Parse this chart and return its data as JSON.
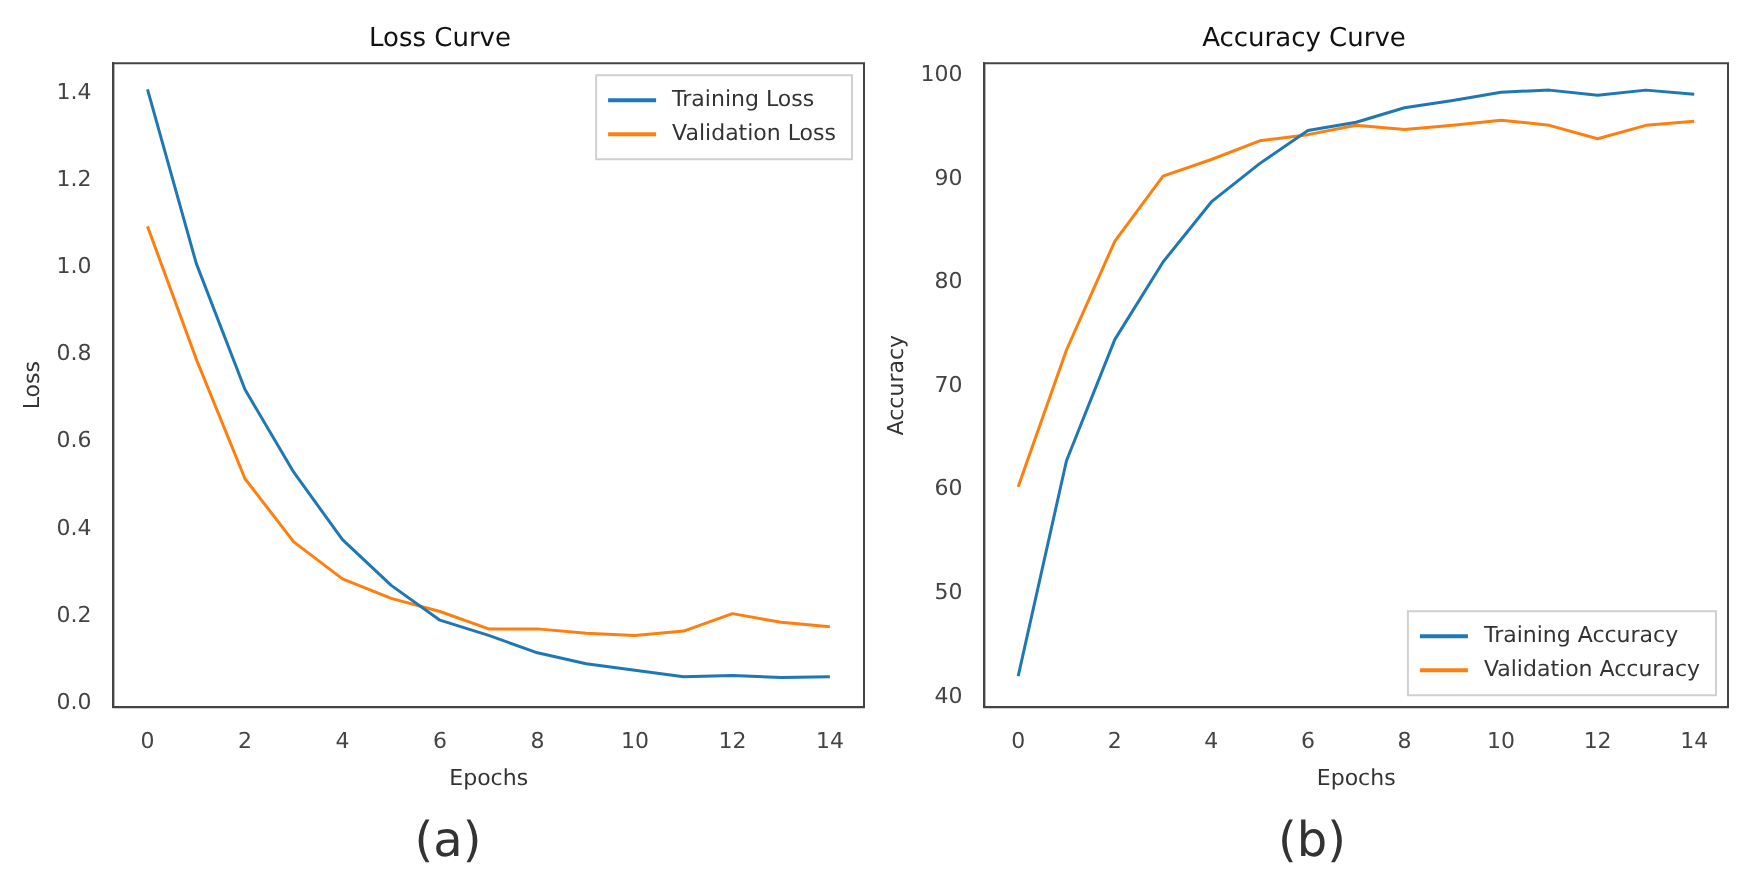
{
  "chart_data": [
    {
      "type": "line",
      "title": "Loss Curve",
      "xlabel": "Epochs",
      "ylabel": "Loss",
      "annotations": [
        "(a)"
      ],
      "x": [
        0,
        1,
        2,
        3,
        4,
        5,
        6,
        7,
        8,
        9,
        10,
        11,
        12,
        13,
        14
      ],
      "xlim": [
        -0.7,
        14.7
      ],
      "xticks": [
        0,
        2,
        4,
        6,
        8,
        10,
        12,
        14
      ],
      "ylim": [
        -0.01,
        1.47
      ],
      "yticks": [
        {
          "value": 0,
          "label": "0.0"
        },
        0.2,
        0.4,
        0.6,
        0.8,
        {
          "value": 1,
          "label": "1.0"
        },
        1.2,
        1.4
      ],
      "grid": false,
      "legend": "top right",
      "marker": "none",
      "line_style": "solid",
      "series": [
        {
          "name": "Training Loss",
          "color": "#1f77b4",
          "values": [
            1.41,
            1.01,
            0.72,
            0.53,
            0.375,
            0.27,
            0.19,
            0.155,
            0.115,
            0.09,
            0.075,
            0.06,
            0.063,
            0.058,
            0.06
          ]
        },
        {
          "name": "Validation Loss",
          "color": "#ff7f0e",
          "values": [
            1.095,
            0.79,
            0.515,
            0.37,
            0.285,
            0.24,
            0.21,
            0.17,
            0.17,
            0.16,
            0.155,
            0.165,
            0.205,
            0.185,
            0.175
          ]
        }
      ]
    },
    {
      "type": "line",
      "title": "Accuracy Curve",
      "xlabel": "Epochs",
      "ylabel": "Accuracy",
      "annotations": [
        "(b)"
      ],
      "x": [
        0,
        1,
        2,
        3,
        4,
        5,
        6,
        7,
        8,
        9,
        10,
        11,
        12,
        13,
        14
      ],
      "xlim": [
        -0.7,
        14.7
      ],
      "xticks": [
        0,
        2,
        4,
        6,
        8,
        10,
        12,
        14
      ],
      "ylim": [
        39,
        101.2
      ],
      "yticks": [
        40,
        50,
        60,
        70,
        80,
        90,
        100
      ],
      "grid": false,
      "legend": "bottom right",
      "marker": "none",
      "line_style": "solid",
      "series": [
        {
          "name": "Training Accuracy",
          "color": "#1f77b4",
          "values": [
            42,
            62.8,
            74.5,
            82,
            87.8,
            91.5,
            94.7,
            95.5,
            96.9,
            97.6,
            98.4,
            98.6,
            98.1,
            98.6,
            98.2
          ]
        },
        {
          "name": "Validation Accuracy",
          "color": "#ff7f0e",
          "values": [
            60.3,
            73.5,
            84,
            90.3,
            91.9,
            93.7,
            94.3,
            95.2,
            94.8,
            95.2,
            95.7,
            95.2,
            93.9,
            95.2,
            95.6
          ]
        }
      ]
    }
  ]
}
